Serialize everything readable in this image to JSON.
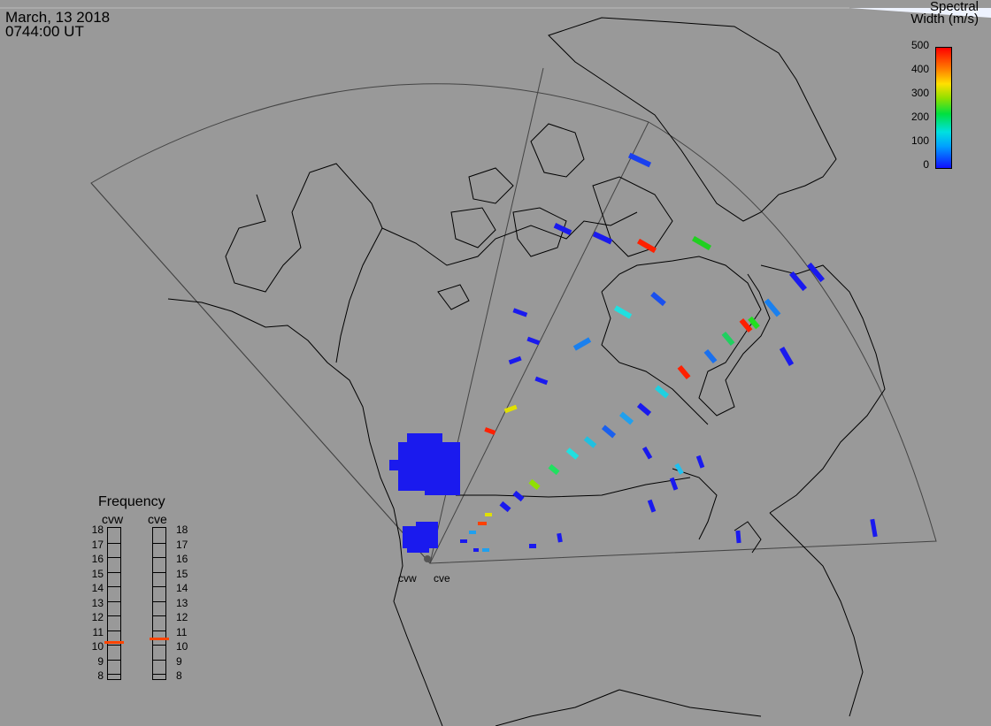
{
  "header": {
    "date": "March, 13 2018",
    "time": "0744:00 UT"
  },
  "colorbar": {
    "title_line1": "Spectral",
    "title_line2": "Width (m/s)",
    "ticks": [
      "500",
      "400",
      "300",
      "200",
      "100",
      "0"
    ],
    "min": 0,
    "max": 500
  },
  "frequency": {
    "title": "Frequency",
    "left_label": "cvw",
    "right_label": "cve",
    "ticks": [
      "18",
      "17",
      "16",
      "15",
      "14",
      "13",
      "12",
      "11",
      "10",
      "9",
      "8"
    ],
    "cvw_mhz": 10.5,
    "cve_mhz": 10.7,
    "marker_color": "#ff4400"
  },
  "radars": {
    "west": "cvw",
    "east": "cve"
  },
  "colors": {
    "background": "#999999",
    "coast": "#000000",
    "fov": "#444444",
    "low": "#0000ff",
    "high": "#ff0000"
  }
}
